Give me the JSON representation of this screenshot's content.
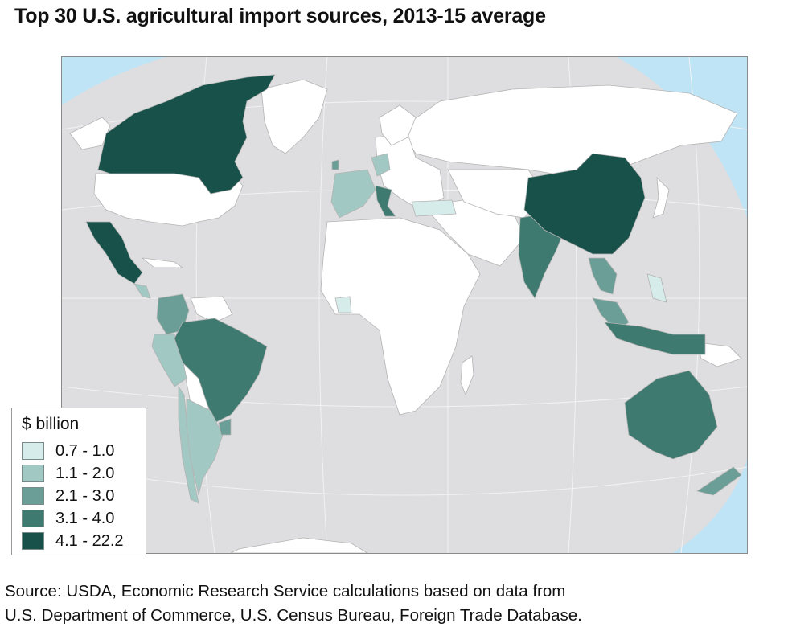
{
  "title": "Top 30 U.S. agricultural import sources, 2013-15 average",
  "legend": {
    "title": "$ billion",
    "classes": [
      {
        "label": "0.7 - 1.0",
        "color": "#d6ecea"
      },
      {
        "label": "1.1 - 2.0",
        "color": "#a1c8c2"
      },
      {
        "label": "2.1 - 3.0",
        "color": "#6a9e96"
      },
      {
        "label": "3.1 - 4.0",
        "color": "#3f7a70"
      },
      {
        "label": "4.1 - 22.2",
        "color": "#17514a"
      }
    ]
  },
  "colors": {
    "ocean": "#bfe4f5",
    "map_background": "#dedee0",
    "land_other": "#ffffff",
    "border": "#b4b4b4"
  },
  "source": {
    "line1": "Source: USDA, Economic Research Service calculations based on data from",
    "line2": "U.S. Department of Commerce, U.S. Census Bureau, Foreign Trade Database."
  }
}
